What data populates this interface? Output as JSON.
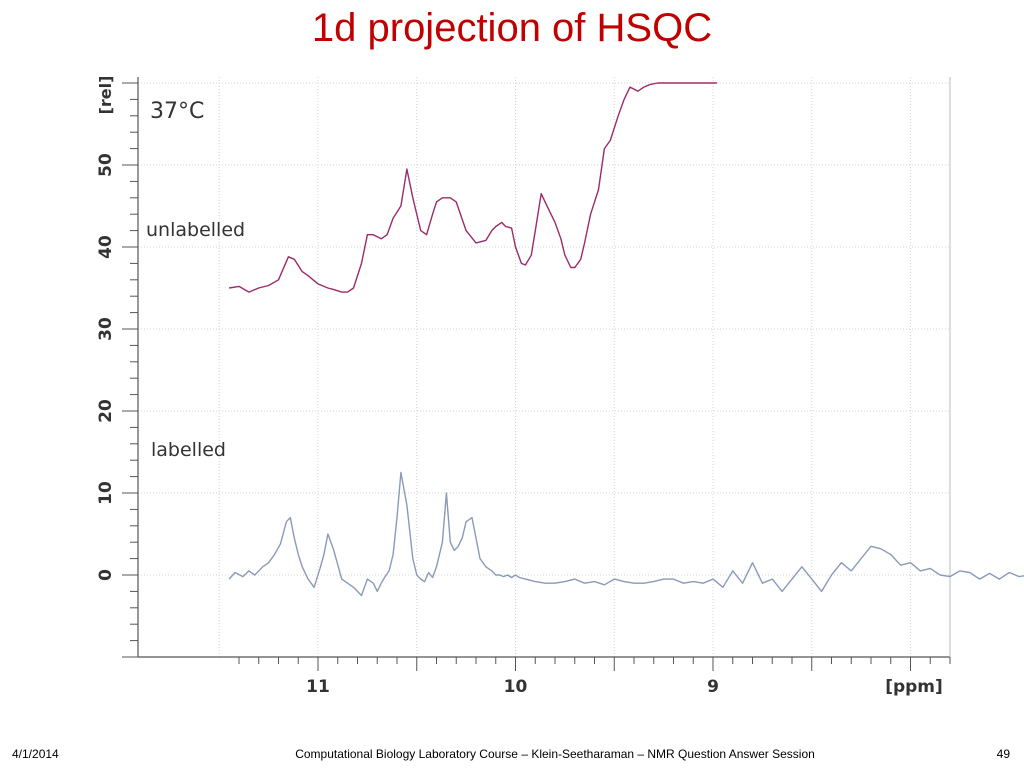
{
  "slide": {
    "title": "1d projection of HSQC",
    "footer_date": "4/1/2014",
    "footer_center": "Computational Biology Laboratory Course – Klein-Seetharaman – NMR Question Answer Session",
    "page_number": "49"
  },
  "chart_data": {
    "type": "line",
    "xlabel": "[ppm]",
    "ylabel": "[rel]",
    "xlim": [
      11.45,
      7.35
    ],
    "ylim": [
      -10,
      60
    ],
    "x_reversed": true,
    "x_ticks": [
      11,
      10,
      9
    ],
    "y_ticks": [
      0,
      10,
      20,
      30,
      40,
      50
    ],
    "grid": true,
    "annotations": [
      "37°C",
      "unlabelled",
      "labelled"
    ],
    "series": [
      {
        "color": "#9b2b6b",
        "x": [
          11.45,
          11.4,
          11.35,
          11.3,
          11.25,
          11.2,
          11.15,
          11.12,
          11.08,
          11.05,
          11.0,
          10.95,
          10.92,
          10.88,
          10.85,
          10.82,
          10.78,
          10.75,
          10.72,
          10.68,
          10.65,
          10.62,
          10.58,
          10.55,
          10.52,
          10.48,
          10.45,
          10.42,
          10.4,
          10.37,
          10.33,
          10.3,
          10.25,
          10.2,
          10.15,
          10.12,
          10.1,
          10.07,
          10.05,
          10.02,
          10.0,
          9.97,
          9.95,
          9.92,
          9.9,
          9.87,
          9.85,
          9.82,
          9.8,
          9.77,
          9.75,
          9.72,
          9.7,
          9.67,
          9.65,
          9.62,
          9.58,
          9.55,
          9.52,
          9.48,
          9.45,
          9.42,
          9.38,
          9.35,
          9.32,
          9.28,
          9.25,
          9.22,
          9.2,
          9.17,
          9.15,
          9.12,
          9.1,
          9.08,
          9.06,
          9.04,
          9.02,
          9.0,
          8.99,
          8.98
        ],
        "y": [
          35,
          35.2,
          34.5,
          35,
          35.3,
          36,
          38.8,
          38.5,
          37,
          36.5,
          35.5,
          35,
          34.8,
          34.5,
          34.5,
          35,
          38,
          41.5,
          41.5,
          41,
          41.5,
          43.5,
          45,
          49.5,
          46,
          42,
          41.5,
          44,
          45.5,
          46,
          46,
          45.5,
          42,
          40.5,
          40.8,
          42,
          42.5,
          43,
          42.5,
          42.3,
          40,
          38,
          37.8,
          39,
          42,
          46.5,
          45.5,
          44,
          43,
          41,
          39,
          37.5,
          37.5,
          38.5,
          40.5,
          44,
          47,
          52,
          53,
          56,
          58,
          59.5,
          59,
          59.5,
          59.8,
          60,
          60,
          60,
          60,
          60,
          60,
          60,
          60,
          60,
          60,
          60,
          60,
          60,
          60,
          60
        ]
      },
      {
        "color": "#8a9ab8",
        "x": [
          11.45,
          11.42,
          11.38,
          11.35,
          11.32,
          11.28,
          11.25,
          11.22,
          11.19,
          11.16,
          11.14,
          11.12,
          11.1,
          11.08,
          11.05,
          11.02,
          10.99,
          10.97,
          10.95,
          10.92,
          10.88,
          10.85,
          10.82,
          10.78,
          10.75,
          10.72,
          10.7,
          10.68,
          10.66,
          10.64,
          10.62,
          10.6,
          10.58,
          10.55,
          10.52,
          10.5,
          10.48,
          10.46,
          10.44,
          10.42,
          10.4,
          10.37,
          10.35,
          10.33,
          10.31,
          10.29,
          10.27,
          10.25,
          10.22,
          10.2,
          10.18,
          10.15,
          10.12,
          10.1,
          10.08,
          10.06,
          10.04,
          10.02,
          10.0,
          9.98,
          9.95,
          9.9,
          9.85,
          9.8,
          9.75,
          9.7,
          9.65,
          9.6,
          9.55,
          9.5,
          9.45,
          9.4,
          9.35,
          9.3,
          9.25,
          9.2,
          9.15,
          9.1,
          9.05,
          9.0,
          8.95,
          8.9,
          8.85,
          8.8,
          8.75,
          8.7,
          8.65,
          8.6,
          8.55,
          8.5,
          8.45,
          8.4,
          8.35,
          8.3,
          8.25,
          8.2,
          8.15,
          8.1,
          8.05,
          8.0,
          7.95,
          7.9,
          7.85,
          7.8,
          7.75,
          7.7,
          7.65,
          7.6,
          7.55,
          7.5,
          7.45,
          7.4,
          7.36
        ],
        "y": [
          -0.5,
          0.3,
          -0.2,
          0.5,
          0,
          1,
          1.5,
          2.5,
          3.8,
          6.5,
          7,
          4.5,
          2.5,
          1,
          -0.5,
          -1.5,
          0.8,
          2.5,
          5,
          3,
          -0.5,
          -1,
          -1.5,
          -2.5,
          -0.5,
          -1,
          -2,
          -1,
          -0.2,
          0.5,
          2.5,
          7,
          12.5,
          8.5,
          2,
          0,
          -0.5,
          -0.8,
          0.3,
          -0.3,
          1,
          4,
          10,
          4,
          3,
          3.5,
          4.5,
          6.5,
          7,
          4.5,
          2,
          1,
          0.5,
          0,
          0,
          -0.2,
          0,
          -0.3,
          0,
          -0.3,
          -0.5,
          -0.8,
          -1,
          -1,
          -0.8,
          -0.5,
          -1,
          -0.8,
          -1.2,
          -0.5,
          -0.8,
          -1,
          -1,
          -0.8,
          -0.5,
          -0.5,
          -1,
          -0.8,
          -1,
          -0.5,
          -1.5,
          0.5,
          -1,
          1.5,
          -1,
          -0.5,
          -2,
          -0.5,
          1,
          -0.5,
          -2,
          0,
          1.5,
          0.5,
          2,
          3.5,
          3.2,
          2.5,
          1.2,
          1.5,
          0.5,
          0.8,
          0,
          -0.2,
          0.5,
          0.3,
          -0.5,
          0.2,
          -0.5,
          0.3,
          -0.2,
          0,
          -0.5
        ]
      }
    ],
    "stray_segment": {
      "color": "#9b2b6b",
      "x": [
        7.36,
        7.35
      ],
      "y": [
        11.5,
        12
      ]
    }
  }
}
